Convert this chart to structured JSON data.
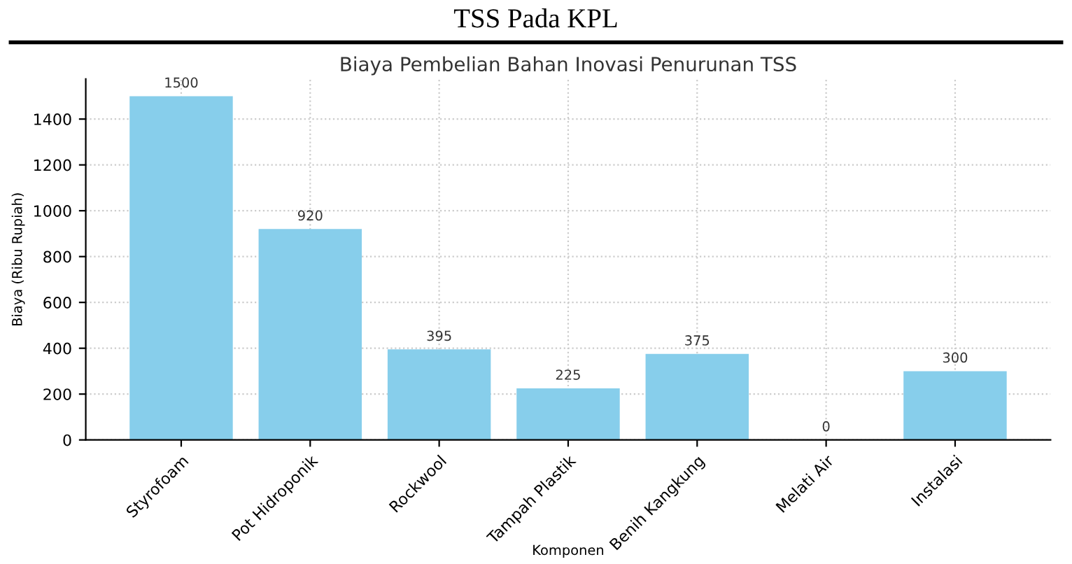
{
  "chart_data": {
    "type": "bar",
    "title": "Biaya Pembelian Bahan Inovasi Penurunan TSS",
    "xlabel": "Komponen",
    "ylabel": "Biaya (Ribu Rupiah)",
    "annotations": [
      "TSS Pada KPL"
    ],
    "categories": [
      "Styrofoam",
      "Pot Hidroponik",
      "Rockwool",
      "Tampah Plastik",
      "Benih Kangkung",
      "Melati Air",
      "Instalasi"
    ],
    "values": [
      1500,
      920,
      395,
      225,
      375,
      0,
      300
    ],
    "color": "#87ceeb",
    "ylim": [
      0,
      1575
    ],
    "yticks": [
      0,
      200,
      400,
      600,
      800,
      1000,
      1200,
      1400
    ],
    "grid": true,
    "data_labels": true
  }
}
